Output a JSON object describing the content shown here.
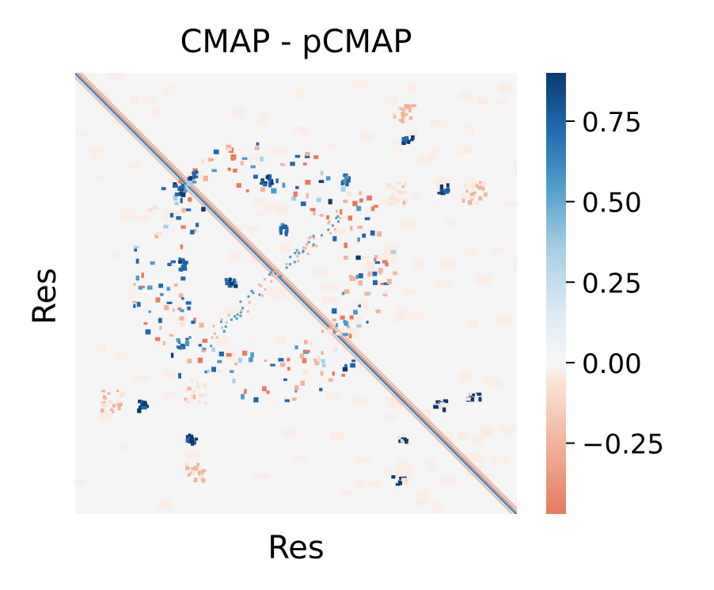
{
  "chart_data": {
    "type": "heatmap",
    "title": "CMAP - pCMAP",
    "xlabel": "Res",
    "ylabel": "Res",
    "x_ticks_shown": false,
    "y_ticks_shown": false,
    "colormap": "RdBu",
    "colorbar": {
      "vmin": -0.47,
      "vmax": 0.9,
      "ticks": [
        0.75,
        0.5,
        0.25,
        0.0,
        -0.25
      ],
      "tick_labels": [
        "0.75",
        "0.50",
        "0.25",
        "0.00",
        "−0.25"
      ]
    },
    "background_value": 0.0,
    "diagonal_band": {
      "description": "main diagonal of near-zero/positive and negative alternating values",
      "values_range": [
        -0.3,
        0.6
      ]
    },
    "features": [
      {
        "type": "cluster",
        "value": 0.9,
        "center": [
          0.83,
          0.26
        ]
      },
      {
        "type": "cluster",
        "value": 0.9,
        "center": [
          0.75,
          0.15
        ]
      },
      {
        "type": "cluster",
        "value": 0.8,
        "center": [
          0.43,
          0.24
        ]
      },
      {
        "type": "cluster",
        "value": 0.8,
        "center": [
          0.26,
          0.23
        ]
      },
      {
        "type": "cluster",
        "value": 0.7,
        "center": [
          0.35,
          0.47
        ]
      },
      {
        "type": "cluster",
        "value": 0.6,
        "center": [
          0.24,
          0.61
        ]
      },
      {
        "type": "cluster",
        "value": -0.2,
        "center": [
          0.9,
          0.27
        ]
      },
      {
        "type": "cluster",
        "value": -0.2,
        "center": [
          0.74,
          0.08
        ]
      },
      {
        "type": "cluster",
        "value": -0.15,
        "center": [
          0.72,
          0.27
        ]
      }
    ],
    "colors": {
      "negative": "#e47b5f",
      "zero": "#f5f5f5",
      "positive_mid": "#7ab6d6",
      "positive_max": "#0b3a70"
    }
  }
}
